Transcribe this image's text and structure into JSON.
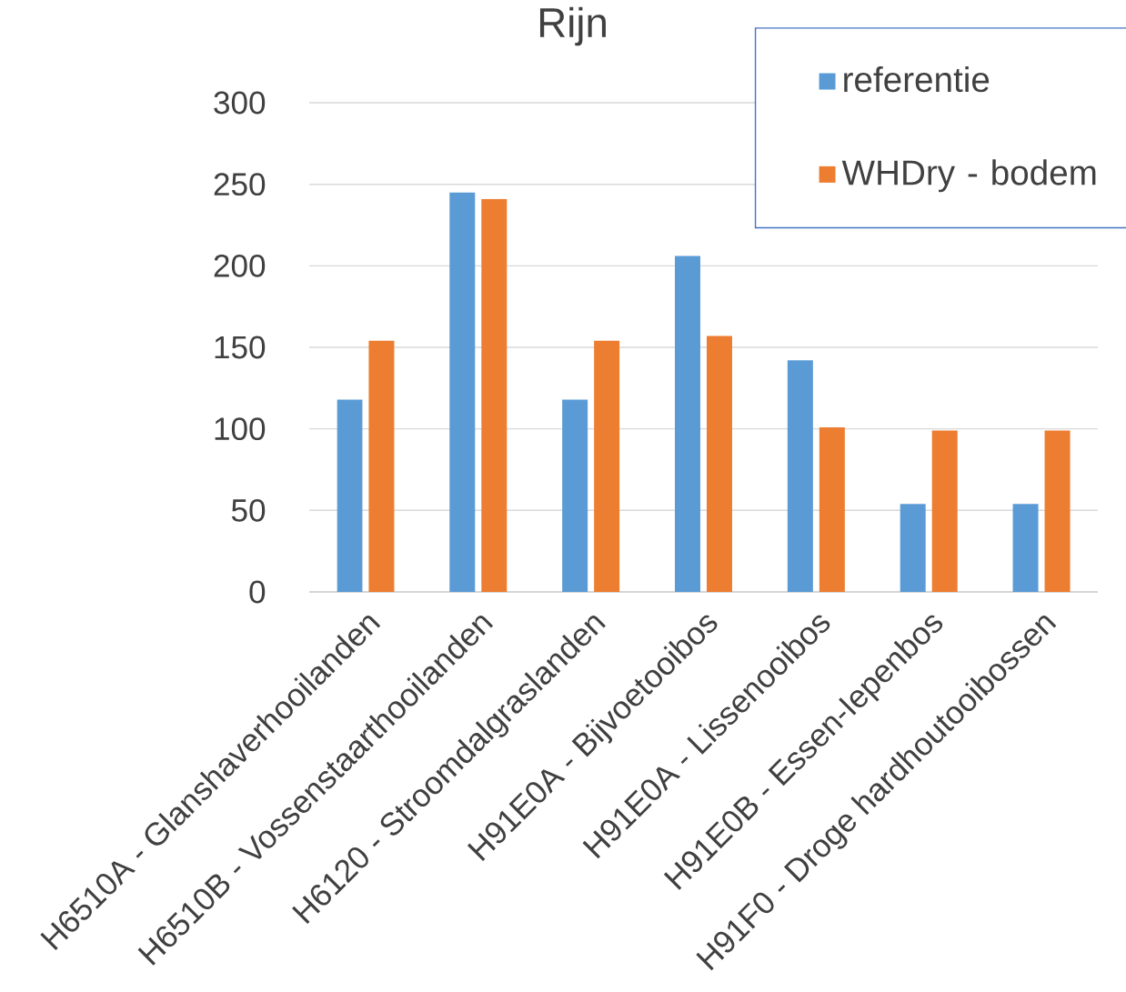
{
  "chart_data": {
    "type": "bar",
    "title": "Rijn",
    "categories": [
      "H6510A - Glanshaverhooilanden",
      "H6510B - Vossenstaarthooilanden",
      "H6120 - Stroomdalgraslanden",
      "H91E0A - Bijvoetooibos",
      "H91E0A - Lissenooibos",
      "H91E0B - Essen-Iepenbos",
      "H91F0 - Droge hardhoutooibossen"
    ],
    "series": [
      {
        "name": "referentie",
        "color": "#5b9bd5",
        "values": [
          118,
          245,
          118,
          206,
          142,
          54,
          54
        ]
      },
      {
        "name": "WHDry - bodem",
        "color": "#ed7d31",
        "values": [
          154,
          241,
          154,
          157,
          101,
          99,
          99
        ]
      }
    ],
    "ylim": [
      0,
      300
    ],
    "yticks": [
      0,
      50,
      100,
      150,
      200,
      250,
      300
    ],
    "grid": "y",
    "legend": "top right"
  }
}
